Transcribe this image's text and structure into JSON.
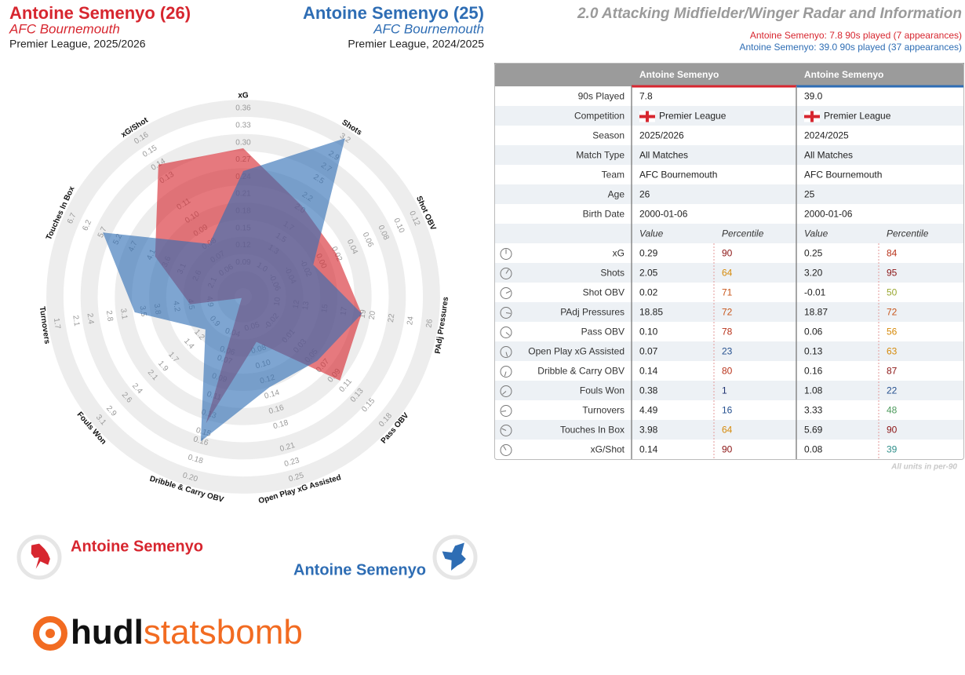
{
  "header": {
    "left": {
      "title": "Antoine Semenyo (26)",
      "team": "AFC Bournemouth",
      "competition": "Premier League, 2025/2026"
    },
    "middle": {
      "title": "Antoine Semenyo (25)",
      "team": "AFC Bournemouth",
      "competition": "Premier League, 2024/2025"
    },
    "right": {
      "title": "2.0 Attacking Midfielder/Winger Radar and Information",
      "lines": [
        "Antoine Semenyo: 7.8 90s played (7 appearances)",
        "Antoine Semenyo: 39.0 90s played (37 appearances)"
      ]
    }
  },
  "chart_data": {
    "type": "radar",
    "axes": [
      {
        "label": "xG",
        "lim": [
          0.03,
          0.36
        ],
        "ticks": [
          0.09,
          0.12,
          0.15,
          0.18,
          0.21,
          0.24,
          0.27,
          {
            "value": 0.3,
            "label": "0.30"
          },
          0.33,
          0.36
        ]
      },
      {
        "label": "Shots",
        "lim": [
          0.5,
          3.2
        ],
        "ticks": [
          {
            "value": 1,
            "label": "1.0"
          },
          1.3,
          1.5,
          1.7,
          {
            "value": 2,
            "label": "2.0"
          },
          2.2,
          2.5,
          2.7,
          2.9,
          3.2
        ]
      },
      {
        "label": "Shot OBV",
        "lim": [
          -0.1,
          0.12
        ],
        "ticks": [
          -0.06,
          -0.04,
          -0.02,
          {
            "value": 0,
            "label": "0.00"
          },
          0.02,
          0.04,
          0.06,
          0.08,
          {
            "value": 0.1,
            "label": "0.10"
          },
          0.12
        ]
      },
      {
        "label": "PAdj Pressures",
        "lim": [
          6.4,
          26
        ],
        "ticks": [
          10,
          12,
          13,
          15,
          17,
          19,
          20,
          22,
          24,
          26
        ]
      },
      {
        "label": "Pass OBV",
        "lim": [
          -0.07,
          0.18
        ],
        "ticks": [
          -0.02,
          0.01,
          0.03,
          0.05,
          0.07,
          0.09,
          0.11,
          0.13,
          0.15,
          0.18
        ]
      },
      {
        "label": "Open Play xG Assisted",
        "lim": [
          0.01,
          0.25
        ],
        "ticks": [
          0.05,
          0.08,
          {
            "value": 0.1,
            "label": "0.10"
          },
          0.12,
          0.14,
          0.16,
          0.18,
          0.21,
          0.23,
          0.25
        ]
      },
      {
        "label": "Dribble & Carry OBV",
        "lim": [
          0,
          0.2
        ],
        "ticks": [
          0.04,
          0.06,
          0.07,
          0.09,
          0.11,
          0.13,
          0.15,
          0.16,
          0.18,
          {
            "value": 0.2,
            "label": "0.20"
          }
        ]
      },
      {
        "label": "Fouls Won",
        "lim": [
          0.35,
          3.1
        ],
        "ticks": [
          0.9,
          1.2,
          1.4,
          1.7,
          1.9,
          2.1,
          2.4,
          2.6,
          2.9,
          3.1
        ]
      },
      {
        "label": "Turnovers",
        "lim": [
          5.6,
          1.7
        ],
        "ticks": [
          4.9,
          4.5,
          4.2,
          3.8,
          3.5,
          3.1,
          2.8,
          2.4,
          2.1,
          1.7
        ]
      },
      {
        "label": "Touches In Box",
        "lim": [
          1.1,
          6.7
        ],
        "ticks": [
          2.1,
          2.6,
          3.1,
          3.6,
          4.1,
          4.7,
          5.2,
          5.7,
          6.2,
          6.7
        ]
      },
      {
        "label": "xG/Shot",
        "lim": [
          0.04,
          0.16
        ],
        "ticks": [
          0.06,
          0.07,
          0.08,
          0.09,
          {
            "value": 0.1,
            "label": "0.10"
          },
          0.11,
          0.13,
          0.14,
          0.15,
          0.16
        ]
      }
    ],
    "series": [
      {
        "name": "Antoine Semenyo",
        "color": "#d7262f",
        "values": [
          0.29,
          2.05,
          0.02,
          18.85,
          0.1,
          0.07,
          0.14,
          0.38,
          4.49,
          3.98,
          0.14
        ]
      },
      {
        "name": "Antoine Semenyo",
        "color": "#2e6db4",
        "values": [
          0.25,
          3.2,
          -0.01,
          18.87,
          0.06,
          0.13,
          0.16,
          1.08,
          3.33,
          5.69,
          0.08
        ]
      }
    ]
  },
  "table": {
    "columns": [
      "Antoine Semenyo",
      "Antoine Semenyo"
    ],
    "info_rows": [
      {
        "label": "90s Played",
        "values": [
          "7.8",
          "39.0"
        ]
      },
      {
        "label": "Competition",
        "values": [
          "Premier League",
          "Premier League"
        ]
      },
      {
        "label": "Season",
        "values": [
          "2025/2026",
          "2024/2025"
        ]
      },
      {
        "label": "Match Type",
        "values": [
          "All Matches",
          "All Matches"
        ]
      },
      {
        "label": "Team",
        "values": [
          "AFC Bournemouth",
          "AFC Bournemouth"
        ]
      },
      {
        "label": "Age",
        "values": [
          "26",
          "25"
        ]
      },
      {
        "label": "Birth Date",
        "values": [
          "2000-01-06",
          "2000-01-06"
        ]
      }
    ],
    "sub_header": [
      "Value",
      "Percentile",
      "Value",
      "Percentile"
    ],
    "metric_rows": [
      {
        "label": "xG",
        "values": [
          "0.29",
          "90",
          "0.25",
          "84"
        ]
      },
      {
        "label": "Shots",
        "values": [
          "2.05",
          "64",
          "3.20",
          "95"
        ]
      },
      {
        "label": "Shot OBV",
        "values": [
          "0.02",
          "71",
          "-0.01",
          "50"
        ]
      },
      {
        "label": "PAdj Pressures",
        "values": [
          "18.85",
          "72",
          "18.87",
          "72"
        ]
      },
      {
        "label": "Pass OBV",
        "values": [
          "0.10",
          "78",
          "0.06",
          "56"
        ]
      },
      {
        "label": "Open Play xG Assisted",
        "values": [
          "0.07",
          "23",
          "0.13",
          "63"
        ]
      },
      {
        "label": "Dribble & Carry OBV",
        "values": [
          "0.14",
          "80",
          "0.16",
          "87"
        ]
      },
      {
        "label": "Fouls Won",
        "values": [
          "0.38",
          "1",
          "1.08",
          "22"
        ]
      },
      {
        "label": "Turnovers",
        "values": [
          "4.49",
          "16",
          "3.33",
          "48"
        ]
      },
      {
        "label": "Touches In Box",
        "values": [
          "3.98",
          "64",
          "5.69",
          "90"
        ]
      },
      {
        "label": "xG/Shot",
        "values": [
          "0.14",
          "90",
          "0.08",
          "39"
        ]
      }
    ],
    "footnote": "All units in per-90"
  },
  "logo": [
    "hudl",
    "statsbomb"
  ]
}
